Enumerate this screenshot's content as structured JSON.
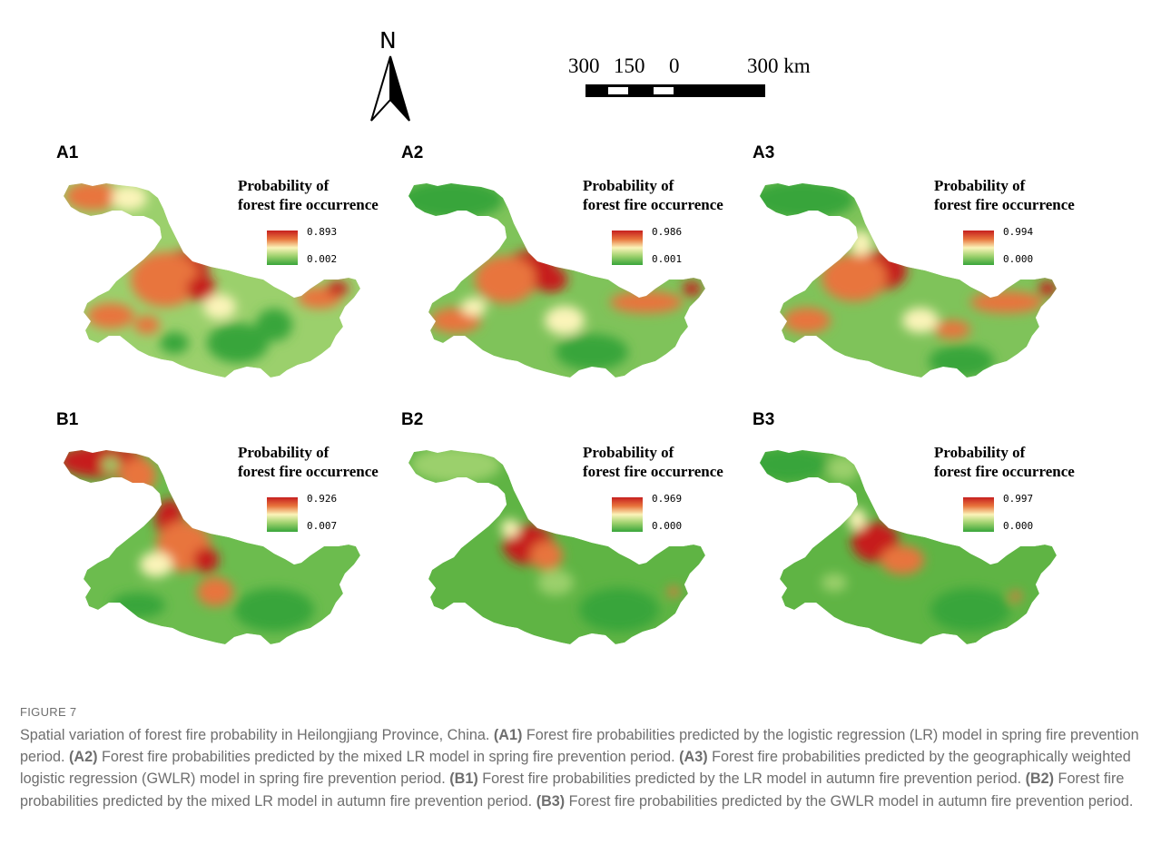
{
  "north_arrow": {
    "letter": "N"
  },
  "scale_bar": {
    "label_300_left": "300",
    "label_150": "150",
    "label_0": "0",
    "label_300_right": "300 km"
  },
  "panels": [
    {
      "id": "A1",
      "legend_title_1": "Probability of",
      "legend_title_2": "forest fire occurrence",
      "max": "0.893",
      "min": "0.002",
      "pattern": "a1"
    },
    {
      "id": "A2",
      "legend_title_1": "Probability of",
      "legend_title_2": "forest fire occurrence",
      "max": "0.986",
      "min": "0.001",
      "pattern": "a2"
    },
    {
      "id": "A3",
      "legend_title_1": "Probability of",
      "legend_title_2": "forest fire occurrence",
      "max": "0.994",
      "min": "0.000",
      "pattern": "a3"
    },
    {
      "id": "B1",
      "legend_title_1": "Probability of",
      "legend_title_2": "forest fire occurrence",
      "max": "0.926",
      "min": "0.007",
      "pattern": "b1"
    },
    {
      "id": "B2",
      "legend_title_1": "Probability of",
      "legend_title_2": "forest fire occurrence",
      "max": "0.969",
      "min": "0.000",
      "pattern": "b2"
    },
    {
      "id": "B3",
      "legend_title_1": "Probability of",
      "legend_title_2": "forest fire occurrence",
      "max": "0.997",
      "min": "0.000",
      "pattern": "b3"
    }
  ],
  "colors": {
    "high": "#c61f1f",
    "mid_high": "#e8743c",
    "mid": "#fbf4b9",
    "mid_low": "#9bd06c",
    "low": "#38a53a"
  },
  "figure": {
    "label": "FIGURE 7",
    "caption_parts": [
      {
        "t": "Spatial variation of forest fire probability in Heilongjiang Province, China. ",
        "b": false
      },
      {
        "t": "(A1)",
        "b": true
      },
      {
        "t": " Forest fire probabilities predicted by the logistic regression (LR) model in spring fire prevention period. ",
        "b": false
      },
      {
        "t": "(A2)",
        "b": true
      },
      {
        "t": " Forest fire probabilities predicted by the mixed LR model in spring fire prevention period. ",
        "b": false
      },
      {
        "t": "(A3)",
        "b": true
      },
      {
        "t": " Forest fire probabilities predicted by the geographically weighted logistic regression (GWLR) model in spring fire prevention period. ",
        "b": false
      },
      {
        "t": "(B1)",
        "b": true
      },
      {
        "t": " Forest fire probabilities predicted by the LR model in autumn fire prevention period. ",
        "b": false
      },
      {
        "t": "(B2)",
        "b": true
      },
      {
        "t": " Forest fire probabilities predicted by the mixed LR model in autumn fire prevention period. ",
        "b": false
      },
      {
        "t": "(B3)",
        "b": true
      },
      {
        "t": " Forest fire probabilities predicted by the GWLR model in autumn fire prevention period.",
        "b": false
      }
    ]
  }
}
